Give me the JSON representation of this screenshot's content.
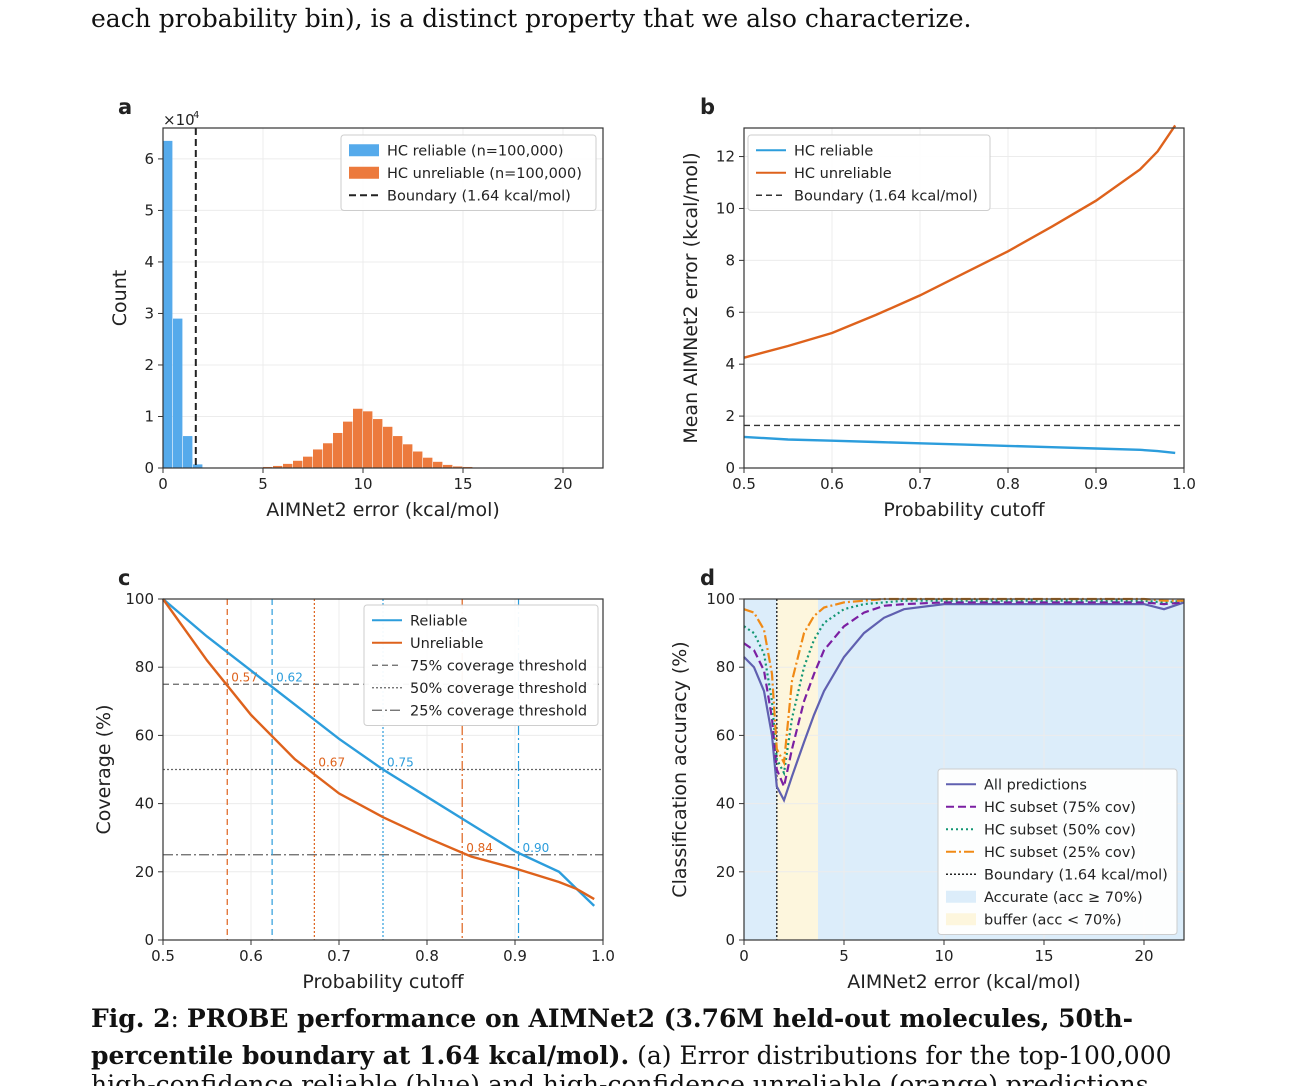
{
  "page": {
    "top_text": "each probability bin), is a distinct property that we also characterize.",
    "caption_label": "Fig. 2",
    "caption_sep": ":",
    "caption_title": "PROBE performance on AIMNet2 (3.76M held-out molecules, 50th-percentile boundary at 1.64 kcal/mol).",
    "caption_body": "(a) Error distributions for the top-100,000",
    "caption_cut": "high-confidence reliable (blue) and high-confidence unreliable (orange) predictions"
  },
  "colors": {
    "blue": "#2c9ddc",
    "orange": "#de621c",
    "hist_blue": "#55aaeb",
    "hist_orange": "#ec7a3d",
    "purple": "#7b1fa2",
    "green": "#129673",
    "dorange": "#f08a16",
    "slate": "#6060b0",
    "acc_bg": "#dcedfa",
    "buf_bg": "#fdf6dd"
  },
  "chart_data": [
    {
      "panel": "a",
      "type": "bar",
      "multiplier": "×10",
      "multiplier_exp": "4",
      "xlabel": "AIMNet2 error (kcal/mol)",
      "ylabel": "Count",
      "xlim": [
        0,
        22
      ],
      "ylim": [
        0,
        6.6
      ],
      "xticks": [
        0,
        5,
        10,
        15,
        20
      ],
      "yticks": [
        0,
        1,
        2,
        3,
        4,
        5,
        6
      ],
      "bin_width": 0.5,
      "legend_position": "upper right",
      "boundary": 1.64,
      "series": [
        {
          "name": "HC reliable  (n=100,000)",
          "bin_starts": [
            0,
            0.5,
            1.0,
            1.5
          ],
          "values": [
            6.35,
            2.9,
            0.62,
            0.07
          ]
        },
        {
          "name": "HC unreliable  (n=100,000)",
          "bin_starts": [
            4.5,
            5,
            5.5,
            6,
            6.5,
            7,
            7.5,
            8,
            8.5,
            9,
            9.5,
            10,
            10.5,
            11,
            11.5,
            12,
            12.5,
            13,
            13.5,
            14,
            14.5,
            15,
            15.5,
            16,
            16.5,
            17,
            17.5,
            18,
            18.5,
            19,
            19.5,
            20,
            20.5
          ],
          "values": [
            0.01,
            0.02,
            0.04,
            0.08,
            0.14,
            0.22,
            0.36,
            0.48,
            0.68,
            0.9,
            1.15,
            1.1,
            0.95,
            0.8,
            0.62,
            0.46,
            0.32,
            0.2,
            0.12,
            0.06,
            0.03,
            0.02,
            0.01,
            0.01,
            0.005,
            0.005,
            0.005,
            0.005,
            0.005,
            0.005,
            0.005,
            0.005,
            0.005
          ]
        }
      ],
      "boundary_name": "Boundary (1.64 kcal/mol)"
    },
    {
      "panel": "b",
      "type": "line",
      "xlabel": "Probability cutoff",
      "ylabel": "Mean AIMNet2 error (kcal/mol)",
      "xlim": [
        0.5,
        1.0
      ],
      "ylim": [
        0,
        13.1
      ],
      "xticks": [
        0.5,
        0.6,
        0.7,
        0.8,
        0.9,
        1.0
      ],
      "yticks": [
        0,
        2,
        4,
        6,
        8,
        10,
        12
      ],
      "legend_position": "upper left",
      "x": [
        0.5,
        0.55,
        0.6,
        0.65,
        0.7,
        0.75,
        0.8,
        0.85,
        0.9,
        0.95,
        0.97,
        0.99
      ],
      "series": [
        {
          "name": "HC reliable",
          "values": [
            1.2,
            1.1,
            1.05,
            1.0,
            0.95,
            0.9,
            0.85,
            0.8,
            0.75,
            0.7,
            0.65,
            0.58
          ]
        },
        {
          "name": "HC unreliable",
          "values": [
            4.25,
            4.7,
            5.2,
            5.9,
            6.65,
            7.5,
            8.35,
            9.3,
            10.3,
            11.5,
            12.2,
            13.2
          ]
        }
      ],
      "boundary": 1.64,
      "boundary_name": "Boundary (1.64 kcal/mol)"
    },
    {
      "panel": "c",
      "type": "line",
      "xlabel": "Probability cutoff",
      "ylabel": "Coverage (%)",
      "xlim": [
        0.5,
        1.0
      ],
      "ylim": [
        0,
        100
      ],
      "xticks": [
        0.5,
        0.6,
        0.7,
        0.8,
        0.9,
        1.0
      ],
      "yticks": [
        0,
        20,
        40,
        60,
        80,
        100
      ],
      "legend_position": "upper right",
      "x": [
        0.5,
        0.55,
        0.6,
        0.65,
        0.7,
        0.75,
        0.8,
        0.85,
        0.9,
        0.95,
        0.97,
        0.99
      ],
      "series": [
        {
          "name": "Reliable",
          "values": [
            100,
            89,
            79,
            69,
            59,
            50,
            42,
            34,
            26,
            20,
            15,
            10
          ]
        },
        {
          "name": "Unreliable",
          "values": [
            100,
            82,
            66,
            53,
            43,
            36,
            30,
            24.5,
            21,
            17,
            15,
            12
          ]
        }
      ],
      "thresholds": [
        {
          "name": "75% coverage threshold",
          "y": 75
        },
        {
          "name": "50% coverage threshold",
          "y": 50
        },
        {
          "name": "25% coverage threshold",
          "y": 25
        }
      ],
      "cutoff_labels": {
        "unrel_75": "0.57",
        "rel_75": "0.62",
        "unrel_50": "0.67",
        "rel_50": "0.75",
        "unrel_25": "0.84",
        "rel_25": "0.90"
      },
      "cutoff_values": {
        "unrel_75": 0.573,
        "rel_75": 0.624,
        "unrel_50": 0.672,
        "rel_50": 0.75,
        "unrel_25": 0.84,
        "rel_25": 0.904
      }
    },
    {
      "panel": "d",
      "type": "line",
      "xlabel": "AIMNet2 error (kcal/mol)",
      "ylabel": "Classification accuracy (%)",
      "xlim": [
        0,
        22
      ],
      "ylim": [
        0,
        100
      ],
      "xticks": [
        0,
        5,
        10,
        15,
        20
      ],
      "yticks": [
        0,
        20,
        40,
        60,
        80,
        100
      ],
      "legend_position": "lower right",
      "boundary": 1.64,
      "buffer_range": [
        1.64,
        3.7
      ],
      "x": [
        0,
        0.5,
        1.0,
        1.4,
        1.64,
        2.0,
        2.4,
        3.0,
        3.5,
        4.0,
        5.0,
        6.0,
        7.0,
        8.0,
        10.0,
        12.0,
        14.0,
        16.0,
        18.0,
        20.0,
        21.0,
        22.0
      ],
      "series": [
        {
          "name": "All predictions",
          "values": [
            83,
            80,
            73,
            60,
            45,
            41,
            48,
            58,
            66,
            73,
            83,
            90,
            94.5,
            97,
            98.5,
            98.5,
            98.5,
            98.5,
            98.5,
            98.5,
            97,
            99
          ]
        },
        {
          "name": "HC subset (75% cov)",
          "values": [
            87,
            85,
            79,
            65,
            50,
            45,
            56,
            70,
            78,
            85,
            92,
            96,
            98,
            98.5,
            99,
            99,
            99,
            99,
            99,
            99,
            98.5,
            99
          ]
        },
        {
          "name": "HC subset (50% cov)",
          "values": [
            92,
            90,
            84,
            70,
            53,
            49,
            65,
            80,
            88,
            93,
            97,
            98.5,
            99,
            99.5,
            99.5,
            99.5,
            99.5,
            99.5,
            99.5,
            99.5,
            99,
            99.5
          ]
        },
        {
          "name": "HC subset (25% cov)",
          "values": [
            97,
            96,
            91,
            78,
            56,
            52,
            76,
            90,
            95,
            97.5,
            99,
            99.5,
            100,
            100,
            100,
            100,
            100,
            100,
            100,
            100,
            99.5,
            99.5
          ]
        }
      ],
      "legend": [
        "All predictions",
        "HC subset (75% cov)",
        "HC subset (50% cov)",
        "HC subset (25% cov)",
        "Boundary (1.64 kcal/mol)",
        "Accurate (acc  ≥  70%)",
        "buffer (acc  <  70%)"
      ]
    }
  ]
}
